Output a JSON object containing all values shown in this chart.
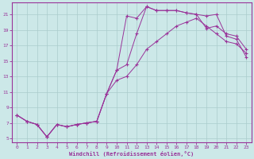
{
  "xlabel": "Windchill (Refroidissement éolien,°C)",
  "ylabel": "",
  "bg_color": "#cce8e8",
  "line_color": "#993399",
  "grid_color": "#aacccc",
  "xlim": [
    -0.5,
    23.5
  ],
  "ylim": [
    4.5,
    22.5
  ],
  "xticks": [
    0,
    1,
    2,
    3,
    4,
    5,
    6,
    7,
    8,
    9,
    10,
    11,
    12,
    13,
    14,
    15,
    16,
    17,
    18,
    19,
    20,
    21,
    22,
    23
  ],
  "yticks": [
    5,
    7,
    9,
    11,
    13,
    15,
    17,
    19,
    21
  ],
  "series": [
    {
      "x": [
        0,
        1,
        2,
        3,
        4,
        5,
        6,
        7,
        8,
        9,
        10,
        11,
        12,
        13,
        14,
        15,
        16,
        17,
        18,
        19,
        20,
        21,
        22,
        23
      ],
      "y": [
        8.0,
        7.2,
        6.8,
        5.2,
        6.8,
        6.5,
        6.8,
        7.0,
        7.2,
        10.8,
        13.8,
        20.8,
        20.5,
        22.0,
        21.5,
        21.5,
        21.5,
        21.2,
        21.0,
        20.8,
        21.0,
        18.2,
        17.8,
        15.5
      ]
    },
    {
      "x": [
        0,
        1,
        2,
        3,
        4,
        5,
        6,
        7,
        8,
        9,
        10,
        11,
        12,
        13,
        14,
        15,
        16,
        17,
        18,
        19,
        20,
        21,
        22,
        23
      ],
      "y": [
        8.0,
        7.2,
        6.8,
        5.2,
        6.8,
        6.5,
        6.8,
        7.0,
        7.2,
        10.8,
        13.8,
        14.5,
        18.5,
        22.0,
        21.5,
        21.5,
        21.5,
        21.2,
        21.0,
        19.2,
        19.5,
        18.5,
        18.2,
        16.5
      ]
    },
    {
      "x": [
        0,
        1,
        2,
        3,
        4,
        5,
        6,
        7,
        8,
        9,
        10,
        11,
        12,
        13,
        14,
        15,
        16,
        17,
        18,
        19,
        20,
        21,
        22,
        23
      ],
      "y": [
        8.0,
        7.2,
        6.8,
        5.2,
        6.8,
        6.5,
        6.8,
        7.0,
        7.2,
        10.8,
        12.5,
        13.0,
        14.5,
        16.5,
        17.5,
        18.5,
        19.5,
        20.0,
        20.5,
        19.5,
        18.5,
        17.5,
        17.2,
        16.0
      ]
    }
  ]
}
